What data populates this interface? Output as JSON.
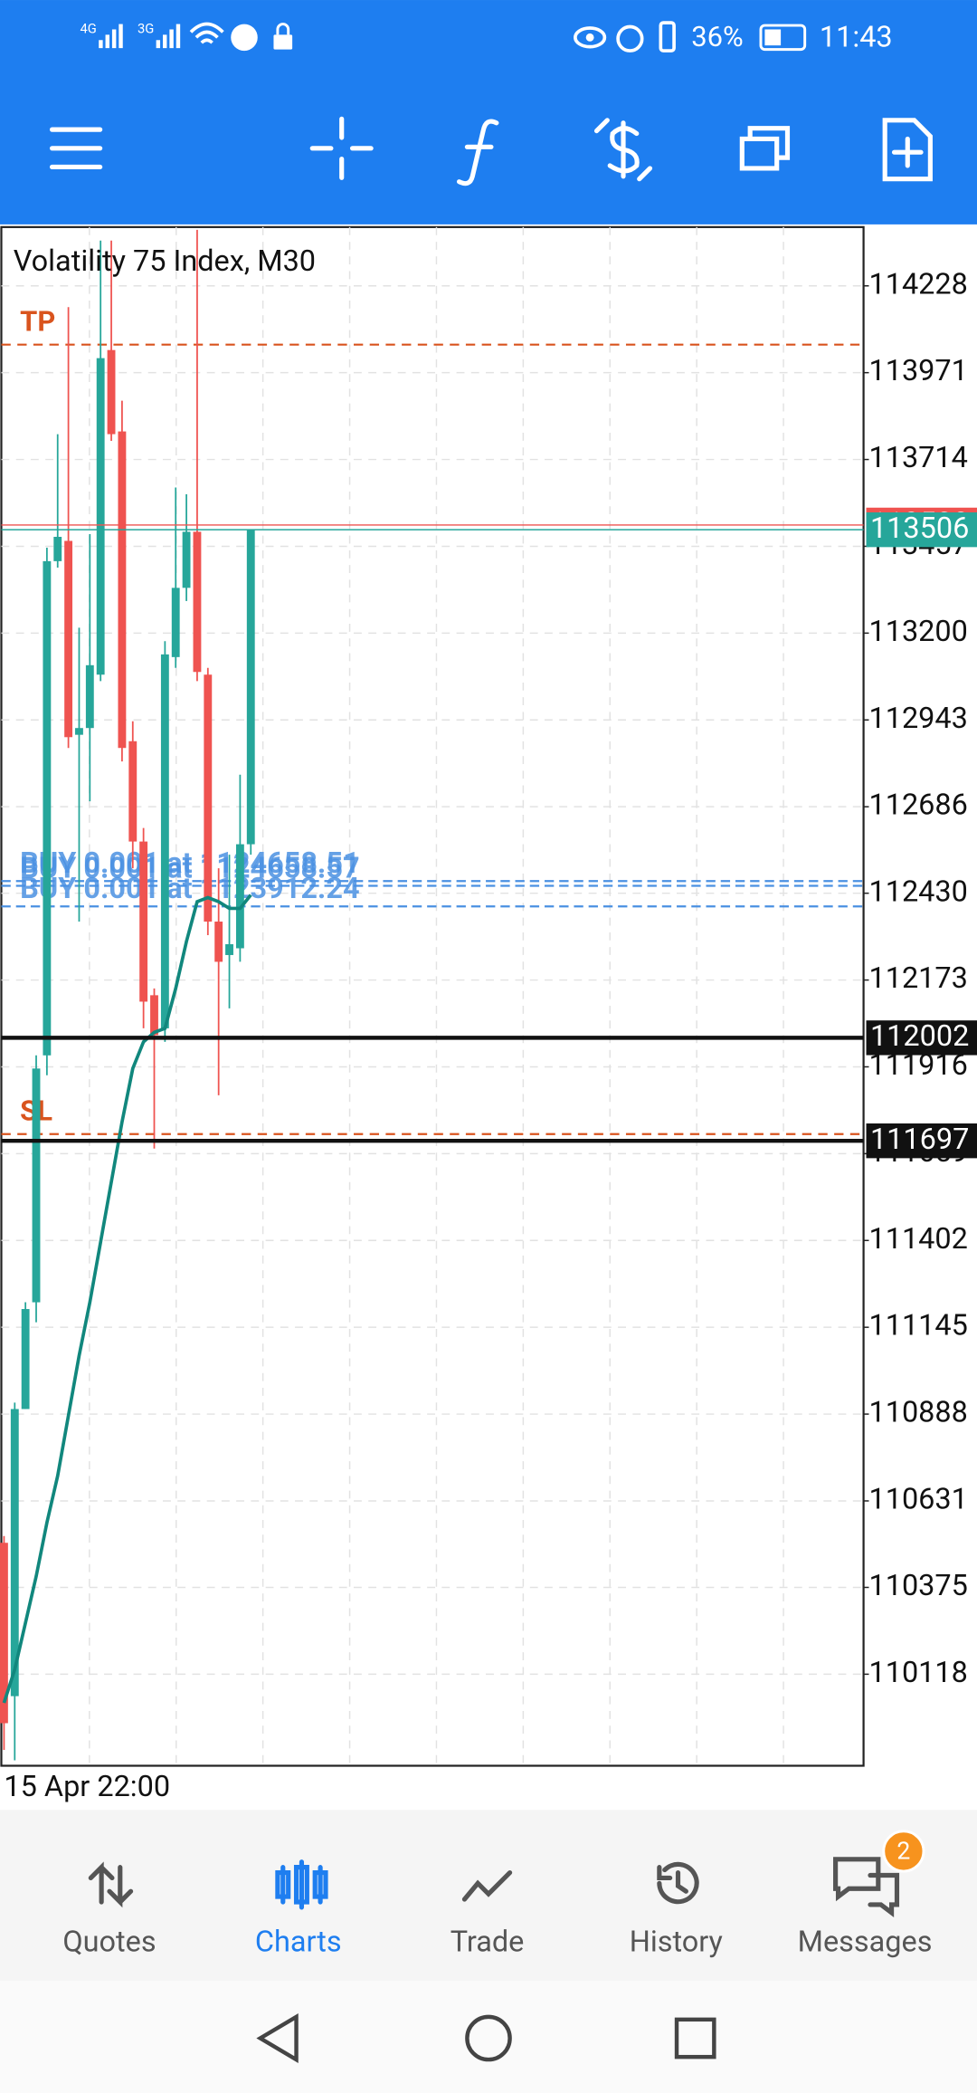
{
  "status_bar": {
    "network_1": "4G",
    "network_2": "3G",
    "battery": "36%",
    "time": "11:43"
  },
  "chart": {
    "title": "Volatility 75 Index, M30",
    "time_label": "15 Apr 22:00",
    "ylim": [
      109847,
      114402
    ],
    "yticks": [
      114228,
      113971,
      113714,
      113457,
      113200,
      112943,
      112686,
      112430,
      112173,
      111916,
      111659,
      111402,
      111145,
      110888,
      110631,
      110375,
      110118
    ],
    "grid": true,
    "up_color": "#26a69a",
    "down_color": "#ef5350",
    "ma_color": "#11877d",
    "candles": {
      "open": [
        110507,
        110053,
        110903,
        111219,
        111950,
        113413,
        113473,
        112899,
        112919,
        113077,
        114038,
        113797,
        112880,
        112583,
        112128,
        112030,
        113129,
        113334,
        113500,
        113077,
        112346,
        112247,
        112267,
        112575
      ],
      "high": [
        110527,
        110922,
        111219,
        111950,
        113453,
        113789,
        114165,
        113216,
        113493,
        114362,
        114362,
        113888,
        112939,
        112623,
        112148,
        113176,
        113631,
        113611,
        114394,
        113097,
        112504,
        112544,
        112781,
        113506
      ],
      "low": [
        109894,
        109863,
        110903,
        111160,
        111891,
        113394,
        112860,
        112346,
        112702,
        113058,
        113769,
        112820,
        112504,
        112030,
        111674,
        111990,
        113097,
        113295,
        113058,
        112306,
        111832,
        112089,
        112227,
        112544
      ],
      "close": [
        109973,
        110903,
        111199,
        111911,
        113413,
        113485,
        112892,
        112919,
        113105,
        114014,
        113789,
        112860,
        112583,
        112109,
        112010,
        113137,
        113334,
        113500,
        113085,
        112346,
        112227,
        112279,
        112575,
        113506
      ]
    },
    "ma": [
      110033,
      110132,
      110270,
      110408,
      110567,
      110705,
      110883,
      111061,
      111219,
      111397,
      111575,
      111753,
      111911,
      111990,
      112018,
      112030,
      112148,
      112287,
      112405,
      112417,
      112405,
      112385,
      112385,
      112425
    ],
    "levels": [
      {
        "label": "TP",
        "price": 114054,
        "color": "#d9541e"
      },
      {
        "label": "SL",
        "price": 111717,
        "color": "#d9541e"
      }
    ],
    "orders": [
      {
        "label": "BUY 0.001 at 1124658.51",
        "price": 112466
      },
      {
        "label": "BUY 0.001 at 1124658.57",
        "price": 112452
      },
      {
        "label": "BUY 0.001 at 1123912.24",
        "price": 112391
      }
    ],
    "price_tags": [
      {
        "price": 113520,
        "color": "#ef5350",
        "line": 1
      },
      {
        "price": 113506,
        "color": "#26a69a",
        "line": 1
      },
      {
        "price": 112002,
        "color": "#111111",
        "line": 3
      },
      {
        "price": 111697,
        "color": "#111111",
        "line": 3
      }
    ]
  },
  "tabs": [
    {
      "label": "Quotes",
      "active": false
    },
    {
      "label": "Charts",
      "active": true
    },
    {
      "label": "Trade",
      "active": false
    },
    {
      "label": "History",
      "active": false
    },
    {
      "label": "Messages",
      "active": false
    }
  ],
  "messages_badge": "2"
}
